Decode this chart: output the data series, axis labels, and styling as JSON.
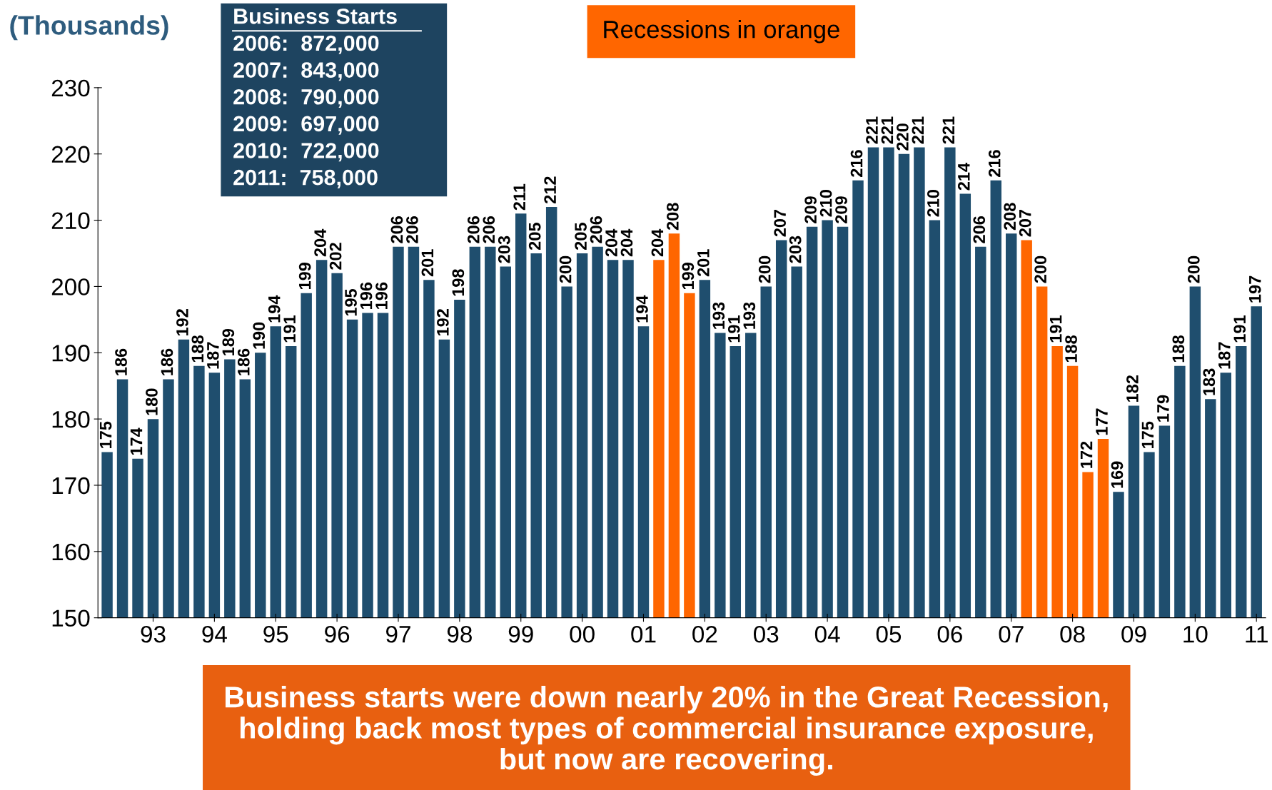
{
  "chart_data": {
    "type": "bar",
    "ylabel": "(Thousands)",
    "categories": [
      null,
      null,
      null,
      "93",
      null,
      null,
      null,
      "94",
      null,
      null,
      null,
      "95",
      null,
      null,
      null,
      "96",
      null,
      null,
      null,
      "97",
      null,
      null,
      null,
      "98",
      null,
      null,
      null,
      "99",
      null,
      null,
      null,
      "00",
      null,
      null,
      null,
      "01",
      null,
      null,
      null,
      "02",
      null,
      null,
      null,
      "03",
      null,
      null,
      null,
      "04",
      null,
      null,
      null,
      "05",
      null,
      null,
      null,
      "06",
      null,
      null,
      null,
      "07",
      null,
      null,
      null,
      "08",
      null,
      null,
      null,
      "09",
      null,
      null,
      null,
      "10",
      null,
      null,
      null,
      "11"
    ],
    "values": [
      175,
      186,
      174,
      180,
      186,
      192,
      188,
      187,
      189,
      186,
      190,
      194,
      191,
      199,
      204,
      202,
      195,
      196,
      196,
      206,
      206,
      201,
      192,
      198,
      206,
      206,
      203,
      211,
      205,
      212,
      200,
      205,
      206,
      204,
      204,
      194,
      204,
      208,
      199,
      201,
      193,
      191,
      193,
      200,
      207,
      203,
      209,
      210,
      209,
      216,
      221,
      221,
      220,
      221,
      210,
      221,
      214,
      206,
      216,
      208,
      207,
      200,
      191,
      188,
      172,
      177,
      169,
      182,
      175,
      179,
      188,
      200,
      183,
      187,
      191,
      197
    ],
    "colors": [
      "#1f4e6e",
      "#1f4e6e",
      "#1f4e6e",
      "#1f4e6e",
      "#1f4e6e",
      "#1f4e6e",
      "#1f4e6e",
      "#1f4e6e",
      "#1f4e6e",
      "#1f4e6e",
      "#1f4e6e",
      "#1f4e6e",
      "#1f4e6e",
      "#1f4e6e",
      "#1f4e6e",
      "#1f4e6e",
      "#1f4e6e",
      "#1f4e6e",
      "#1f4e6e",
      "#1f4e6e",
      "#1f4e6e",
      "#1f4e6e",
      "#1f4e6e",
      "#1f4e6e",
      "#1f4e6e",
      "#1f4e6e",
      "#1f4e6e",
      "#1f4e6e",
      "#1f4e6e",
      "#1f4e6e",
      "#1f4e6e",
      "#1f4e6e",
      "#1f4e6e",
      "#1f4e6e",
      "#1f4e6e",
      "#1f4e6e",
      "#ff6600",
      "#ff6600",
      "#ff6600",
      "#1f4e6e",
      "#1f4e6e",
      "#1f4e6e",
      "#1f4e6e",
      "#1f4e6e",
      "#1f4e6e",
      "#1f4e6e",
      "#1f4e6e",
      "#1f4e6e",
      "#1f4e6e",
      "#1f4e6e",
      "#1f4e6e",
      "#1f4e6e",
      "#1f4e6e",
      "#1f4e6e",
      "#1f4e6e",
      "#1f4e6e",
      "#1f4e6e",
      "#1f4e6e",
      "#1f4e6e",
      "#1f4e6e",
      "#ff6600",
      "#ff6600",
      "#ff6600",
      "#ff6600",
      "#ff6600",
      "#ff6600",
      "#1f4e6e",
      "#1f4e6e",
      "#1f4e6e",
      "#1f4e6e",
      "#1f4e6e",
      "#1f4e6e",
      "#1f4e6e",
      "#1f4e6e",
      "#1f4e6e",
      "#1f4e6e"
    ],
    "ylim": [
      150,
      230
    ],
    "yticks": [
      150,
      160,
      170,
      180,
      190,
      200,
      210,
      220,
      230
    ],
    "grid": false,
    "legend": false,
    "data_labels": true,
    "annotations": [
      "Business Starts",
      "2006:  872,000",
      "2007:  843,000",
      "2008:  790,000",
      "2009:  697,000",
      "2010:  722,000",
      "2011:  758,000",
      "Recessions in orange",
      "Business starts were down nearly 20% in the Great Recession,\nholding back most types of commercial insurance exposure,\nbut now are recovering."
    ]
  }
}
